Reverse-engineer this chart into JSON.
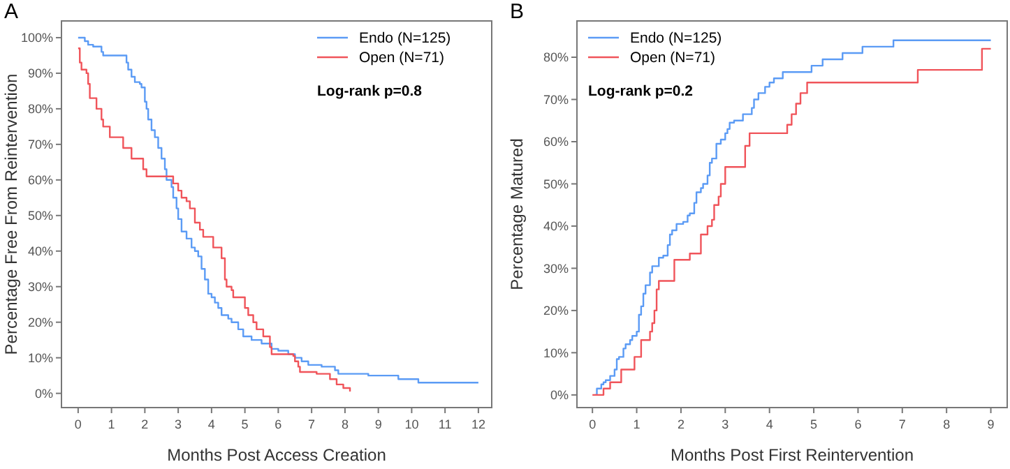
{
  "chart_data": [
    {
      "type": "step",
      "title": "A",
      "xlabel": "Months Post Access Creation",
      "ylabel": "Percentage Free From Reintervention",
      "legend": "top right",
      "annotations": [
        "Log-rank p=0.8"
      ],
      "xlim": [
        -0.5,
        12.4
      ],
      "xticks": [
        0,
        1,
        2,
        3,
        4,
        5,
        6,
        7,
        8,
        9,
        10,
        11,
        12
      ],
      "ylim": [
        -4,
        104.7
      ],
      "yticks": [
        {
          "value": 0,
          "label": "0%"
        },
        {
          "value": 10,
          "label": "10%"
        },
        {
          "value": 20,
          "label": "20%"
        },
        {
          "value": 30,
          "label": "30%"
        },
        {
          "value": 40,
          "label": "40%"
        },
        {
          "value": 50,
          "label": "50%"
        },
        {
          "value": 60,
          "label": "60%"
        },
        {
          "value": 70,
          "label": "70%"
        },
        {
          "value": 80,
          "label": "80%"
        },
        {
          "value": 90,
          "label": "90%"
        },
        {
          "value": 100,
          "label": "100%"
        }
      ],
      "series": [
        {
          "name": "Endo (N=125)",
          "color": "#5b9bf5",
          "x": [
            0,
            0.2,
            0.3,
            0.45,
            0.7,
            0.75,
            1.4,
            1.45,
            1.5,
            1.6,
            1.7,
            1.85,
            1.9,
            2.0,
            2.05,
            2.1,
            2.2,
            2.3,
            2.4,
            2.5,
            2.6,
            2.65,
            2.8,
            2.85,
            2.95,
            3.0,
            3.1,
            3.25,
            3.4,
            3.5,
            3.6,
            3.7,
            3.8,
            3.9,
            4.0,
            4.1,
            4.2,
            4.3,
            4.5,
            4.6,
            4.8,
            4.95,
            5.2,
            5.5,
            5.8,
            6.0,
            6.3,
            6.5,
            6.7,
            6.9,
            7.3,
            7.7,
            7.8,
            8.7,
            9.6,
            10.2,
            12
          ],
          "values": [
            100,
            99,
            98,
            97.5,
            96,
            95,
            95,
            93,
            91,
            89,
            87.5,
            87,
            86,
            82,
            80,
            77,
            74,
            72,
            69,
            66,
            63,
            60,
            58,
            55,
            52,
            49,
            45.5,
            43.5,
            41,
            40,
            38.5,
            35,
            32,
            28,
            27,
            25.5,
            24,
            22,
            21,
            20,
            18,
            16,
            15,
            14,
            12.5,
            12,
            11,
            10,
            9,
            8,
            7.5,
            6.5,
            5.5,
            5,
            4,
            3,
            3
          ]
        },
        {
          "name": "Open (N=71)",
          "color": "#f0545a",
          "x": [
            0,
            0.05,
            0.1,
            0.25,
            0.3,
            0.35,
            0.55,
            0.7,
            0.75,
            0.95,
            1.35,
            1.6,
            1.95,
            2.05,
            2.85,
            3.0,
            3.1,
            3.25,
            3.35,
            3.5,
            3.65,
            3.75,
            4.05,
            4.3,
            4.4,
            4.45,
            4.6,
            4.65,
            5.0,
            5.1,
            5.25,
            5.35,
            5.55,
            5.75,
            5.8,
            6.45,
            6.5,
            6.6,
            6.65,
            7.15,
            7.55,
            7.75,
            7.95,
            8.15
          ],
          "values": [
            97,
            93,
            91,
            90,
            87,
            83,
            80,
            77,
            75,
            72,
            69,
            66,
            63,
            61,
            59,
            57,
            55,
            54,
            52,
            48,
            46,
            44,
            41,
            38,
            32,
            30,
            29,
            27,
            24,
            22,
            20,
            18,
            16,
            13,
            11,
            10.5,
            9,
            7.5,
            6,
            5.5,
            4,
            2.5,
            1.5,
            0.5
          ]
        }
      ]
    },
    {
      "type": "step",
      "title": "B",
      "xlabel": "Months Post First Reintervention",
      "ylabel": "Percentage Matured",
      "legend": "top left",
      "annotations": [
        "Log-rank p=0.2"
      ],
      "xlim": [
        -0.35,
        9.37
      ],
      "xticks": [
        0,
        1,
        2,
        3,
        4,
        5,
        6,
        7,
        8,
        9
      ],
      "ylim": [
        -3,
        88.6
      ],
      "yticks": [
        {
          "value": 0,
          "label": "0%"
        },
        {
          "value": 10,
          "label": "10%"
        },
        {
          "value": 20,
          "label": "20%"
        },
        {
          "value": 30,
          "label": "30%"
        },
        {
          "value": 40,
          "label": "40%"
        },
        {
          "value": 50,
          "label": "50%"
        },
        {
          "value": 60,
          "label": "60%"
        },
        {
          "value": 70,
          "label": "70%"
        },
        {
          "value": 80,
          "label": "80%"
        }
      ],
      "series": [
        {
          "name": "Endo (N=125)",
          "color": "#5b9bf5",
          "x": [
            0.05,
            0.1,
            0.2,
            0.25,
            0.3,
            0.4,
            0.5,
            0.55,
            0.6,
            0.7,
            0.75,
            0.85,
            0.9,
            1.0,
            1.05,
            1.1,
            1.15,
            1.2,
            1.3,
            1.35,
            1.5,
            1.6,
            1.7,
            1.75,
            1.8,
            1.9,
            2.05,
            2.15,
            2.2,
            2.3,
            2.35,
            2.45,
            2.5,
            2.6,
            2.65,
            2.7,
            2.8,
            2.9,
            3.0,
            3.05,
            3.1,
            3.2,
            3.4,
            3.6,
            3.65,
            3.75,
            3.9,
            4.0,
            4.1,
            4.3,
            4.95,
            5.2,
            5.65,
            6.1,
            6.8,
            9.0
          ],
          "values": [
            0,
            1.5,
            2.5,
            3,
            3.5,
            4.5,
            6,
            8.5,
            9,
            11,
            12,
            13,
            14,
            15,
            19,
            21,
            24,
            26,
            29,
            30.5,
            32.5,
            33,
            35.5,
            38,
            39,
            40.5,
            41,
            42.5,
            43,
            45.5,
            48,
            49,
            50,
            52,
            55,
            56,
            59.5,
            60.5,
            62,
            63,
            64.5,
            65,
            66.5,
            68,
            70,
            71.5,
            73,
            74,
            75,
            76.5,
            78,
            79.5,
            81,
            82.5,
            84,
            84
          ]
        },
        {
          "name": "Open (N=71)",
          "color": "#f0545a",
          "x": [
            0,
            0.25,
            0.4,
            0.65,
            0.95,
            1.1,
            1.3,
            1.35,
            1.4,
            1.45,
            1.5,
            1.85,
            2.2,
            2.45,
            2.6,
            2.7,
            2.75,
            2.85,
            2.9,
            3.0,
            3.45,
            3.55,
            4.4,
            4.5,
            4.6,
            4.7,
            4.85,
            7.35,
            8.8,
            9.0
          ],
          "values": [
            0,
            1.5,
            3,
            6,
            9,
            13,
            15,
            17,
            20,
            25,
            27,
            32,
            33.5,
            38,
            40,
            41.5,
            45,
            47,
            50,
            54,
            59,
            62,
            64,
            66.5,
            69,
            71.5,
            74,
            77,
            82,
            82
          ]
        }
      ]
    }
  ]
}
